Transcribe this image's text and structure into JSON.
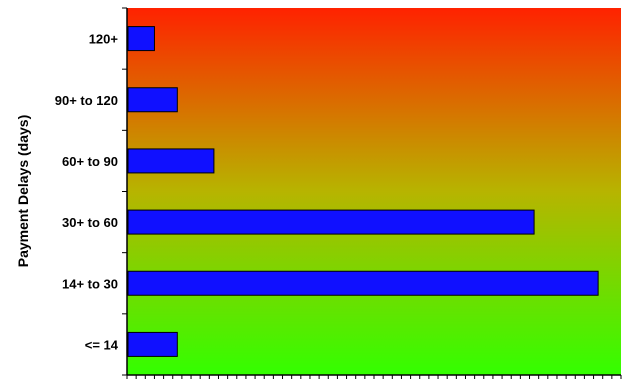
{
  "chart_data": {
    "type": "bar",
    "orientation": "horizontal",
    "title": "",
    "xlabel": "",
    "ylabel": "Payment Delays (days)",
    "categories": [
      "120+",
      "90+ to 120",
      "60+ to 90",
      "30+ to 60",
      "14+ to 30",
      "<= 14"
    ],
    "values": [
      3,
      5.5,
      9.5,
      44.5,
      51.5,
      5.5
    ],
    "xlim": [
      0,
      54
    ],
    "grid": false,
    "legend": "none",
    "colors": {
      "bar_fill": "#1010ff",
      "bar_stroke": "#000000",
      "background_top": "#ff2200",
      "background_bottom": "#33ff00",
      "axis": "#000000"
    }
  }
}
